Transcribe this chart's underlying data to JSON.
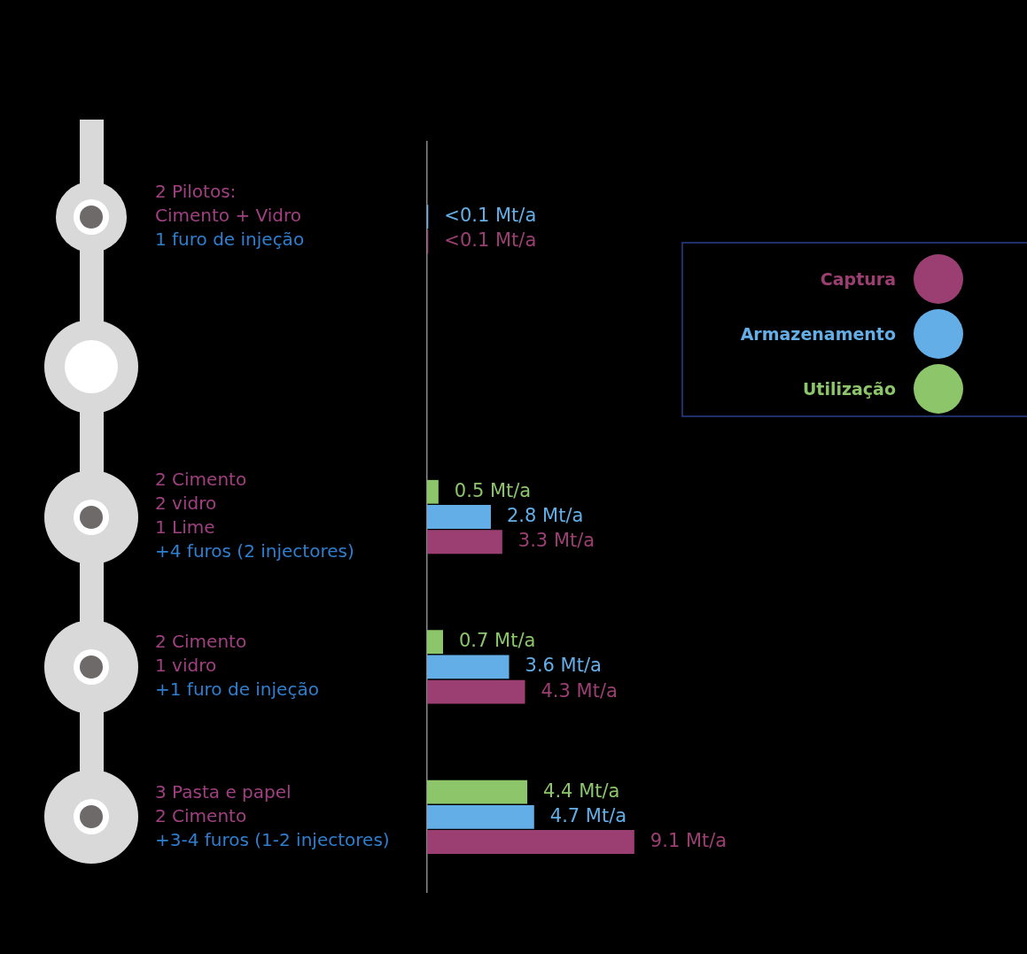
{
  "chart_data": {
    "type": "bar",
    "orientation": "horizontal",
    "categories": [
      "2 Pilotos:\nCimento + Vidro\n1 furo de injeção",
      null,
      "2 Cimento\n2 vidro\n1 Lime\n+4 furos (2 injectores)",
      "2 Cimento\n1 vidro\n+1 furo de injeção",
      "3 Pasta e papel\n2 Cimento\n+3-4 furos (1-2 injectores)"
    ],
    "series": [
      {
        "name": "Utilização",
        "color": "#8cc56a",
        "values": [
          null,
          null,
          0.5,
          0.7,
          4.4
        ],
        "value_labels": [
          null,
          null,
          "0.5 Mt/a",
          "0.7 Mt/a",
          "4.4 Mt/a"
        ]
      },
      {
        "name": "Armazenamento",
        "color": "#64aee8",
        "values": [
          0.05,
          null,
          2.8,
          3.6,
          4.7
        ],
        "value_labels": [
          "<0.1 Mt/a",
          null,
          "2.8 Mt/a",
          "3.6 Mt/a",
          "4.7 Mt/a"
        ]
      },
      {
        "name": "Captura",
        "color": "#9b3f72",
        "values": [
          0.05,
          null,
          3.3,
          4.3,
          9.1
        ],
        "value_labels": [
          "<0.1 Mt/a",
          null,
          "3.3 Mt/a",
          "4.3 Mt/a",
          "9.1 Mt/a"
        ]
      }
    ],
    "grid": false,
    "legend": "top right",
    "tick_labels": "y"
  }
}
